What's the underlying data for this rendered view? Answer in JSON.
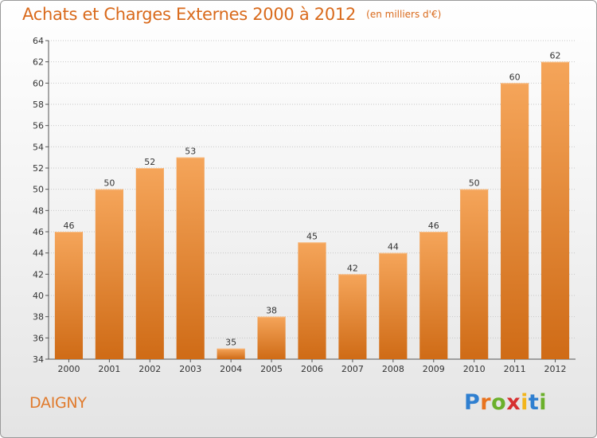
{
  "title": "Achats et Charges Externes 2000 à 2012",
  "unit_note": "(en milliers d'€)",
  "commune": "DAIGNY",
  "logo": {
    "text": "Proxiti",
    "letters": [
      {
        "ch": "P",
        "color": "#2f7fd0"
      },
      {
        "ch": "r",
        "color": "#e8731e"
      },
      {
        "ch": "o",
        "color": "#6bb02b"
      },
      {
        "ch": "x",
        "color": "#d62f2f"
      },
      {
        "ch": "i",
        "color": "#f2b51c"
      },
      {
        "ch": "t",
        "color": "#2f7fd0"
      },
      {
        "ch": "i",
        "color": "#6bb02b"
      }
    ]
  },
  "colors": {
    "accent": "#d96a1c",
    "bar_top": "#f5a55a",
    "bar_bottom": "#cf6b16",
    "grid": "#c8c8c8"
  },
  "chart_data": {
    "type": "bar",
    "title": "Achats et Charges Externes 2000 à 2012",
    "subtitle": "(en milliers d'€)",
    "categories": [
      "2000",
      "2001",
      "2002",
      "2003",
      "2004",
      "2005",
      "2006",
      "2007",
      "2008",
      "2009",
      "2010",
      "2011",
      "2012"
    ],
    "values": [
      46,
      50,
      52,
      53,
      35,
      38,
      45,
      42,
      44,
      46,
      50,
      60,
      62
    ],
    "ylim": [
      34,
      64
    ],
    "yticks": [
      34,
      36,
      38,
      40,
      42,
      44,
      46,
      48,
      50,
      52,
      54,
      56,
      58,
      60,
      62,
      64
    ],
    "grid": true,
    "xlabel": "",
    "ylabel": ""
  }
}
